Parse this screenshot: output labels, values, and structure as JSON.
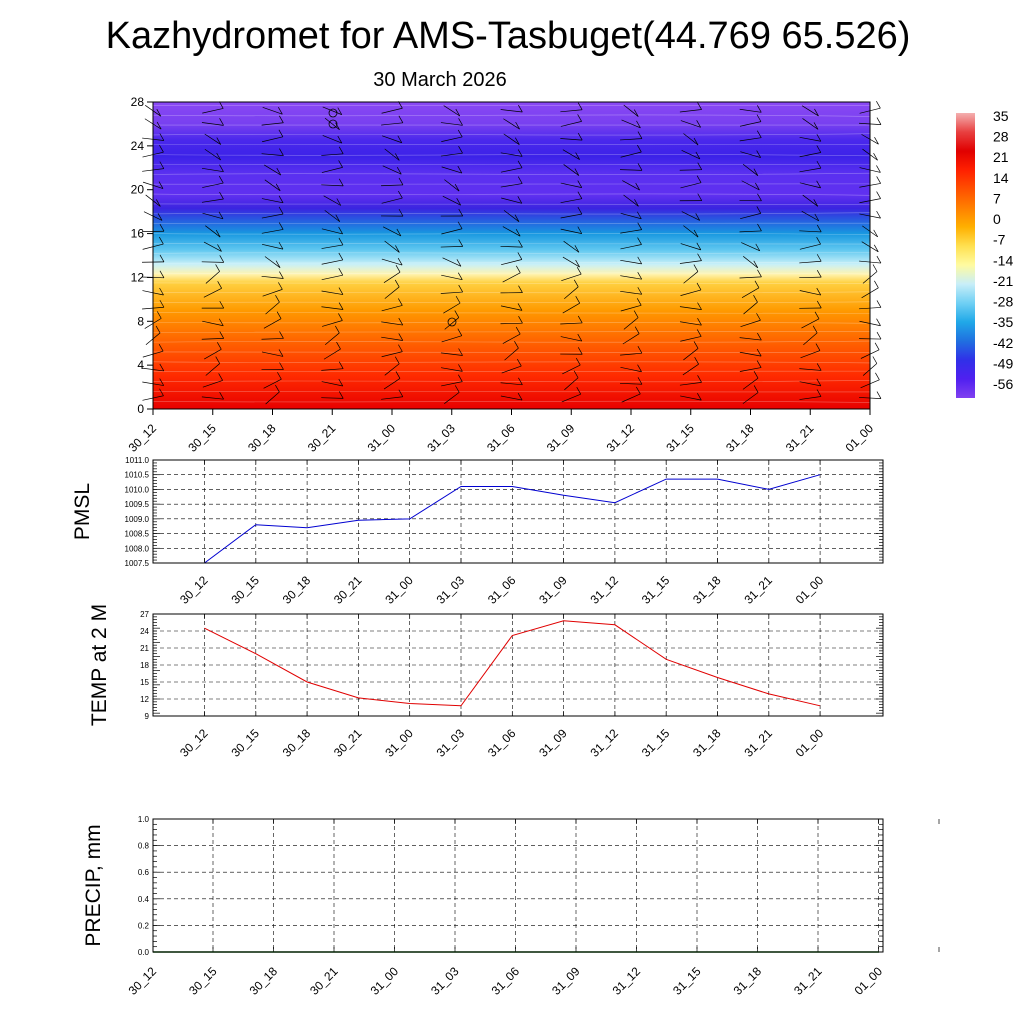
{
  "header": {
    "title": "Kazhydromet for AMS-Tasbuget(44.769 65.526)",
    "subtitle": "30 March 2026"
  },
  "chart_data": [
    {
      "type": "heatmap",
      "name": "temperature-wind-profile",
      "x_labels": [
        "30_12",
        "30_15",
        "30_18",
        "30_21",
        "31_00",
        "31_03",
        "31_06",
        "31_09",
        "31_12",
        "31_15",
        "31_18",
        "31_21",
        "01_00"
      ],
      "y_ticks": [
        0,
        4,
        8,
        12,
        16,
        20,
        24,
        28
      ],
      "ylim": [
        0,
        28
      ],
      "colorbar_labels": [
        "35",
        "28",
        "21",
        "14",
        "7",
        "0",
        "-7",
        "-14",
        "-21",
        "-28",
        "-35",
        "-42",
        "-49",
        "-56"
      ],
      "colorbar_colors": [
        "#f4b0b0",
        "#e84040",
        "#e00000",
        "#ff2000",
        "#ff5000",
        "#ff8000",
        "#ffb000",
        "#ffe050",
        "#fffba0",
        "#c8eef8",
        "#70d0f4",
        "#20a8e8",
        "#2070e0",
        "#3030e8",
        "#5020f0",
        "#8040f0"
      ],
      "color_stops": [
        {
          "level": 0,
          "color": "#e80000"
        },
        {
          "level": 3,
          "color": "#ff2a00"
        },
        {
          "level": 6,
          "color": "#ff6000"
        },
        {
          "level": 9,
          "color": "#ff9a00"
        },
        {
          "level": 11.5,
          "color": "#ffd040"
        },
        {
          "level": 12.3,
          "color": "#fff4b0"
        },
        {
          "level": 13.2,
          "color": "#c8f0f8"
        },
        {
          "level": 14.5,
          "color": "#60c8f0"
        },
        {
          "level": 16,
          "color": "#1898e0"
        },
        {
          "level": 17.3,
          "color": "#2858e0"
        },
        {
          "level": 18.3,
          "color": "#3a24e0"
        },
        {
          "level": 19.5,
          "color": "#6030f0"
        },
        {
          "level": 21.5,
          "color": "#5a30f0"
        },
        {
          "level": 23,
          "color": "#3c22e8"
        },
        {
          "level": 24.5,
          "color": "#4a28ec"
        },
        {
          "level": 26,
          "color": "#7840f0"
        },
        {
          "level": 28,
          "color": "#8a48f4"
        }
      ]
    },
    {
      "type": "line",
      "name": "pmsl",
      "ylabel": "PMSL",
      "x": [
        "30_12",
        "30_15",
        "30_18",
        "30_21",
        "31_00",
        "31_03",
        "31_06",
        "31_09",
        "31_12",
        "31_15",
        "31_18",
        "31_21",
        "01_00"
      ],
      "values": [
        1007.5,
        1008.8,
        1008.7,
        1008.95,
        1009.0,
        1010.1,
        1010.1,
        1009.8,
        1009.55,
        1010.35,
        1010.35,
        1010.0,
        1010.5
      ],
      "ylim": [
        1007.5,
        1011.0
      ],
      "y_ticks": [
        "1007.5",
        "1008.0",
        "1008.5",
        "1009.0",
        "1009.5",
        "1010.0",
        "1010.5",
        "1011.0"
      ],
      "color": "#0000d0"
    },
    {
      "type": "line",
      "name": "temp-2m",
      "ylabel": "TEMP at 2 M",
      "x": [
        "30_12",
        "30_15",
        "30_18",
        "30_21",
        "31_00",
        "31_03",
        "31_06",
        "31_09",
        "31_12",
        "31_15",
        "31_18",
        "31_21",
        "01_00"
      ],
      "values": [
        24.5,
        20.0,
        15.0,
        12.2,
        11.2,
        10.8,
        23.2,
        25.8,
        25.1,
        19.0,
        15.8,
        12.9,
        10.8
      ],
      "ylim": [
        9,
        27
      ],
      "y_ticks": [
        "9",
        "12",
        "15",
        "18",
        "21",
        "24",
        "27"
      ],
      "color": "#e00000"
    },
    {
      "type": "line",
      "name": "precip",
      "ylabel": "PRECIP, mm",
      "x": [
        "30_12",
        "30_15",
        "30_18",
        "30_21",
        "31_00",
        "31_03",
        "31_06",
        "31_09",
        "31_12",
        "31_15",
        "31_18",
        "31_21",
        "01_00"
      ],
      "values": [
        0,
        0,
        0,
        0,
        0,
        0,
        0,
        0,
        0,
        0,
        0,
        0,
        0
      ],
      "ylim": [
        0,
        1.0
      ],
      "y_ticks": [
        "0.0",
        "0.2",
        "0.4",
        "0.6",
        "0.8",
        "1.0"
      ],
      "color": "#006000"
    }
  ]
}
